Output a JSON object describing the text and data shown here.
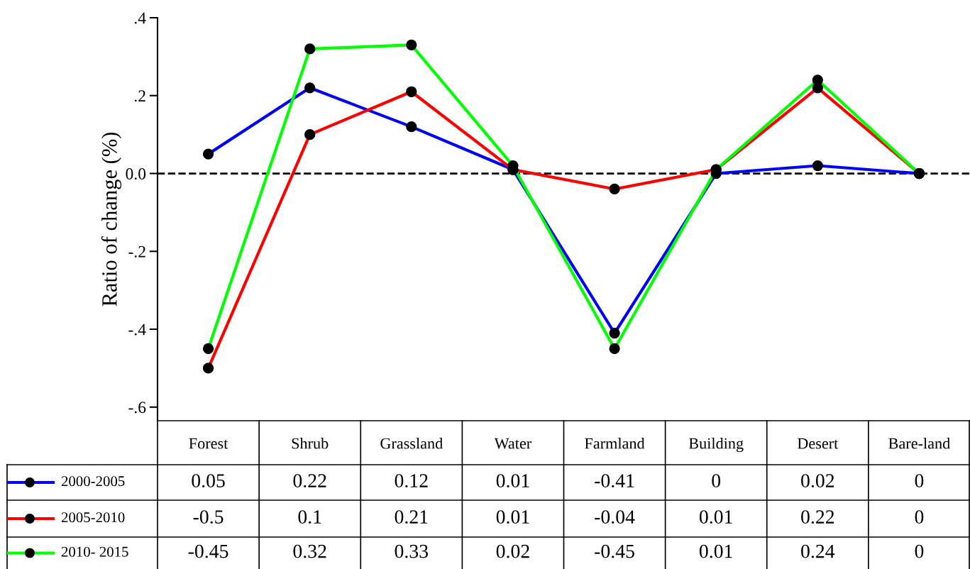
{
  "chart_data": {
    "type": "line",
    "ylabel": "Ratio of change (%)",
    "categories": [
      "Forest",
      "Shrub",
      "Grassland",
      "Water",
      "Farmland",
      "Building",
      "Desert",
      "Bare-land"
    ],
    "series": [
      {
        "name": "2000-2005",
        "color": "#0000ff",
        "values": [
          0.05,
          0.22,
          0.12,
          0.01,
          -0.41,
          0,
          0.02,
          0
        ]
      },
      {
        "name": "2005-2010",
        "color": "#ff0000",
        "values": [
          -0.5,
          0.1,
          0.21,
          0.01,
          -0.04,
          0.01,
          0.22,
          0
        ]
      },
      {
        "name": "2010- 2015",
        "color": "#00ff00",
        "values": [
          -0.45,
          0.32,
          0.33,
          0.02,
          -0.45,
          0.01,
          0.24,
          0
        ]
      }
    ],
    "ylim": [
      -0.635,
      0.4
    ],
    "yticks": [
      {
        "value": 0.4,
        "label": ".4"
      },
      {
        "value": 0.2,
        "label": ".2"
      },
      {
        "value": 0,
        "label": "0.0"
      },
      {
        "value": -0.2,
        "label": "-.2"
      },
      {
        "value": -0.4,
        "label": "-.4"
      },
      {
        "value": -0.6,
        "label": "-.6"
      }
    ],
    "ref_lines": [
      {
        "axis": "y",
        "value": 0,
        "color": "#000000",
        "line_style": "dashed"
      }
    ],
    "marker": "circle",
    "line_style": "solid",
    "grid": false,
    "legend": "bottom",
    "data_labels": true
  }
}
